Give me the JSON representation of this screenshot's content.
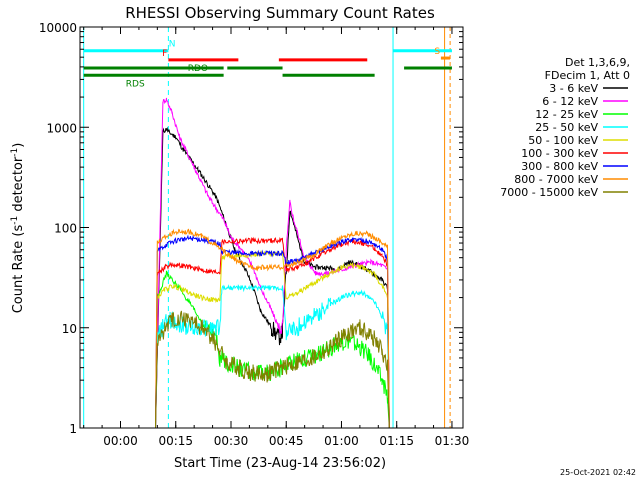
{
  "chart_data": {
    "type": "line",
    "title": "RHESSI Observing Summary Count Rates",
    "xlabel": "Start Time (23-Aug-14 23:56:02)",
    "ylabel_main": "Count Rate (s",
    "ylabel_sup1": "-1",
    "ylabel_mid": " detector",
    "ylabel_sup2": "-1",
    "ylabel_end": ")",
    "yscale": "log",
    "ylim": [
      1,
      10000
    ],
    "xlim": [
      -7,
      97
    ],
    "x_unit": "minutes after 23:56:00",
    "x_ticks": [
      {
        "t": 4,
        "label": "00:00"
      },
      {
        "t": 19,
        "label": "00:15"
      },
      {
        "t": 34,
        "label": "00:30"
      },
      {
        "t": 49,
        "label": "00:45"
      },
      {
        "t": 64,
        "label": "01:00"
      },
      {
        "t": 79,
        "label": "01:15"
      },
      {
        "t": 94,
        "label": "01:30"
      }
    ],
    "y_ticks": [
      {
        "v": 1,
        "label": "1"
      },
      {
        "v": 10,
        "label": "10"
      },
      {
        "v": 100,
        "label": "100"
      },
      {
        "v": 1000,
        "label": "1000"
      },
      {
        "v": 10000,
        "label": "10000"
      }
    ],
    "legend_header": [
      "Det 1,3,6,9,",
      "FDecim 1, Att 0"
    ],
    "legend_placement": "right",
    "series": [
      {
        "name": "3 - 6 keV",
        "color": "#000000",
        "x": [
          13,
          13.5,
          15.5,
          16.5,
          17,
          19,
          21,
          25,
          30,
          33,
          35,
          38,
          40,
          42,
          45,
          47,
          48,
          49,
          50,
          51,
          52,
          54,
          57,
          60,
          63,
          66,
          69,
          72,
          75,
          76.5,
          77,
          78,
          79,
          80
        ],
        "y": [
          1,
          1,
          900,
          960,
          900,
          800,
          600,
          380,
          200,
          100,
          60,
          38,
          25,
          15,
          10,
          8,
          9,
          35,
          150,
          110,
          80,
          45,
          40,
          40,
          38,
          45,
          42,
          36,
          30,
          25,
          1,
          1,
          1,
          1
        ]
      },
      {
        "name": "6 - 12 keV",
        "color": "#ff00ff",
        "x": [
          13,
          13.5,
          15.5,
          16.5,
          17,
          18,
          20,
          24,
          28,
          32,
          34,
          37,
          40,
          42,
          45,
          47,
          48,
          49,
          50,
          51,
          52,
          54,
          57,
          60,
          64,
          68,
          72,
          75,
          76.5,
          77,
          78,
          79,
          80
        ],
        "y": [
          1,
          1,
          1800,
          1900,
          1700,
          1400,
          800,
          400,
          200,
          120,
          80,
          60,
          40,
          25,
          15,
          10,
          10,
          60,
          180,
          120,
          90,
          50,
          35,
          35,
          38,
          42,
          45,
          42,
          38,
          1,
          1,
          1,
          1
        ]
      },
      {
        "name": "12 - 25 keV",
        "color": "#00ff00",
        "x": [
          13,
          13.5,
          14,
          15,
          16.5,
          18,
          20,
          23,
          27,
          30,
          31,
          33,
          36,
          40,
          44,
          48,
          52,
          56,
          60,
          63,
          66,
          69,
          72,
          75,
          76.5,
          77
        ],
        "y": [
          1,
          1,
          20,
          25,
          35,
          30,
          25,
          17,
          10,
          8,
          5,
          4.5,
          4,
          3.5,
          3.5,
          4,
          5,
          5,
          6,
          7,
          7.5,
          6.5,
          5,
          3,
          2,
          1
        ]
      },
      {
        "name": "25 - 50 keV",
        "color": "#00ffff",
        "x": [
          13,
          13.5,
          14,
          16,
          18,
          20,
          23,
          26,
          29,
          31,
          31.5,
          34,
          36,
          38,
          40,
          42,
          44,
          46,
          48,
          49,
          52,
          55,
          58,
          61,
          64,
          67,
          70,
          73,
          75,
          76.5,
          77
        ],
        "y": [
          1,
          1,
          8,
          11,
          12,
          11,
          10,
          10,
          10,
          10,
          25,
          25,
          25,
          25,
          25,
          25,
          25,
          25,
          25,
          9,
          10,
          12,
          14,
          17,
          20,
          22,
          22,
          18,
          13,
          9,
          1
        ]
      },
      {
        "name": "50 - 100 keV",
        "color": "#dddd00",
        "x": [
          13,
          13.5,
          14,
          16,
          18,
          20,
          23,
          26,
          29,
          31,
          31.5,
          35,
          40,
          45,
          48,
          49,
          52,
          55,
          58,
          61,
          64,
          67,
          70,
          73,
          75,
          76.5,
          77
        ],
        "y": [
          1,
          1,
          20,
          24,
          26,
          25,
          22,
          20,
          19,
          19,
          50,
          52,
          54,
          55,
          56,
          20,
          22,
          26,
          30,
          35,
          40,
          42,
          40,
          34,
          26,
          20,
          1
        ]
      },
      {
        "name": "100 - 300 keV",
        "color": "#ff0000",
        "x": [
          13,
          13.5,
          14,
          16,
          18,
          20,
          23,
          26,
          29,
          31,
          31.5,
          35,
          40,
          45,
          48,
          49,
          52,
          55,
          58,
          61,
          64,
          67,
          70,
          73,
          75,
          76.5,
          77
        ],
        "y": [
          1,
          1,
          35,
          40,
          43,
          42,
          40,
          38,
          36,
          36,
          72,
          73,
          74,
          74,
          75,
          38,
          40,
          45,
          52,
          60,
          68,
          72,
          70,
          62,
          52,
          42,
          1
        ]
      },
      {
        "name": "300 - 800 keV",
        "color": "#0000ff",
        "x": [
          13,
          13.5,
          14,
          16,
          18,
          20,
          23,
          26,
          29,
          31,
          31.5,
          35,
          40,
          45,
          48,
          49,
          52,
          55,
          58,
          61,
          64,
          67,
          70,
          73,
          75,
          76.5,
          77
        ],
        "y": [
          1,
          1,
          58,
          66,
          72,
          76,
          78,
          76,
          72,
          68,
          58,
          56,
          55,
          55,
          55,
          45,
          47,
          52,
          58,
          65,
          72,
          76,
          75,
          68,
          60,
          48,
          1
        ]
      },
      {
        "name": "800 - 7000 keV",
        "color": "#ff8c00",
        "x": [
          13,
          13.5,
          14,
          16,
          18,
          20,
          23,
          26,
          29,
          32,
          35,
          38,
          41,
          44,
          47,
          50,
          53,
          56,
          59,
          62,
          65,
          68,
          71,
          74,
          76.5,
          77
        ],
        "y": [
          1,
          1,
          70,
          80,
          88,
          92,
          90,
          82,
          70,
          58,
          48,
          42,
          40,
          40,
          40,
          42,
          46,
          52,
          62,
          72,
          82,
          88,
          86,
          76,
          64,
          1
        ]
      },
      {
        "name": "7000 - 15000 keV",
        "color": "#808000",
        "x": [
          13,
          13.5,
          14,
          16,
          18,
          20,
          23,
          26,
          29,
          31,
          33,
          36,
          40,
          44,
          48,
          52,
          56,
          60,
          63,
          66,
          69,
          72,
          75,
          76.5,
          77
        ],
        "y": [
          1,
          1,
          7,
          10,
          12,
          13,
          12,
          10,
          8,
          6,
          4.5,
          4,
          3.5,
          3.5,
          4,
          4.5,
          5,
          6,
          7.5,
          9,
          10,
          8.5,
          6,
          4,
          1
        ]
      }
    ],
    "time_markers_cyan": [
      -6,
      78
    ],
    "time_markers_cyan_dashed": [
      17
    ],
    "time_markers_orange": [
      92,
      93.5
    ],
    "status_bars": [
      {
        "label": "N",
        "color": "#00ffff",
        "y": 5800,
        "segments": [
          [
            -6,
            17
          ],
          [
            78,
            94
          ]
        ],
        "label_t": 18
      },
      {
        "label": "S",
        "color": "#ff8c00",
        "y": 4900,
        "segments": [
          [
            91,
            93.5
          ]
        ],
        "label_t": 90
      },
      {
        "label": "F",
        "color": "#ff0000",
        "y": 4700,
        "segments": [
          [
            17,
            36
          ],
          [
            47,
            71
          ]
        ],
        "label_t": 16
      },
      {
        "label": "RDO",
        "color": "#008000",
        "y": 3900,
        "segments": [
          [
            -6,
            32
          ],
          [
            33,
            48
          ],
          [
            81,
            94
          ]
        ],
        "label_t": 25
      },
      {
        "label": "RDS",
        "color": "#008000",
        "y": 3300,
        "segments": [
          [
            -6,
            32
          ],
          [
            48,
            73
          ]
        ],
        "label_t": 8
      }
    ],
    "footer_date": "25-Oct-2021 02:42"
  }
}
